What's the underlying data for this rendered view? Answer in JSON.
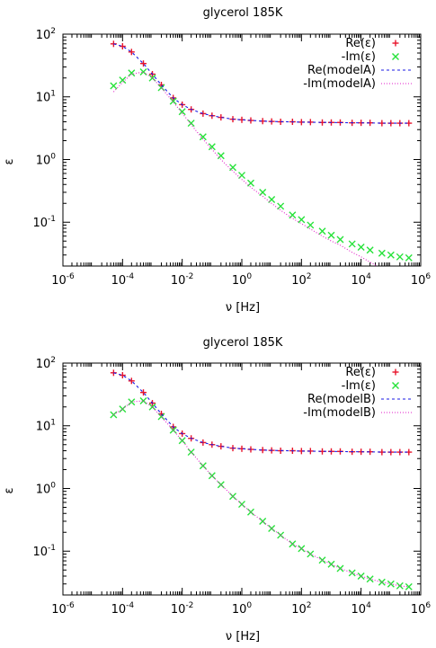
{
  "chart_data": [
    {
      "type": "scatter",
      "title": "glycerol 185K",
      "xlabel": "ν [Hz]",
      "ylabel": "ε",
      "xscale": "log",
      "yscale": "log",
      "xlim": [
        1e-06,
        1000000.0
      ],
      "ylim": [
        0.02,
        100
      ],
      "grid": false,
      "legend_position": "top-right",
      "x_ticks": [
        {
          "base": "10",
          "exp": "-6"
        },
        {
          "base": "10",
          "exp": "-4"
        },
        {
          "base": "10",
          "exp": "-2"
        },
        {
          "base": "10",
          "exp": "0"
        },
        {
          "base": "10",
          "exp": "2"
        },
        {
          "base": "10",
          "exp": "4"
        },
        {
          "base": "10",
          "exp": "6"
        }
      ],
      "y_ticks": [
        {
          "base": "10",
          "exp": "-1"
        },
        {
          "base": "10",
          "exp": "0"
        },
        {
          "base": "10",
          "exp": "1"
        },
        {
          "base": "10",
          "exp": "2"
        }
      ],
      "x": [
        5e-05,
        0.0001,
        0.0002,
        0.0005,
        0.001,
        0.002,
        0.005,
        0.01,
        0.02,
        0.05,
        0.1,
        0.2,
        0.5,
        1,
        2,
        5,
        10,
        20,
        50,
        100,
        200,
        500,
        1000,
        2000,
        5000,
        10000,
        20000,
        50000,
        100000,
        200000,
        400000
      ],
      "series": [
        {
          "name": "Re(ε)",
          "marker": "+",
          "color": "#e8132b",
          "y": [
            70,
            64,
            52,
            34,
            23,
            15.5,
            9.6,
            7.5,
            6.3,
            5.4,
            5.0,
            4.7,
            4.4,
            4.3,
            4.2,
            4.1,
            4.05,
            4.0,
            4.0,
            3.95,
            3.95,
            3.9,
            3.9,
            3.9,
            3.85,
            3.85,
            3.85,
            3.8,
            3.8,
            3.8,
            3.8
          ]
        },
        {
          "name": "-Im(ε)",
          "marker": "x",
          "color": "#27e23a",
          "y": [
            15,
            18.5,
            24,
            25,
            20,
            14,
            8.5,
            5.8,
            3.8,
            2.3,
            1.6,
            1.15,
            0.75,
            0.56,
            0.42,
            0.3,
            0.23,
            0.18,
            0.13,
            0.11,
            0.09,
            0.072,
            0.062,
            0.053,
            0.045,
            0.04,
            0.036,
            0.032,
            0.03,
            0.028,
            0.027
          ]
        },
        {
          "name": "Re(modelA)",
          "line": "dashed",
          "color": "#1a1ae6",
          "x": [
            5e-05,
            0.0001,
            0.0002,
            0.0005,
            0.001,
            0.002,
            0.005,
            0.01,
            0.02,
            0.05,
            0.1,
            0.2,
            0.5,
            1,
            5,
            10,
            100,
            1000,
            10000,
            100000,
            400000
          ],
          "y": [
            70,
            64,
            52,
            34,
            23,
            15.5,
            9.6,
            7.5,
            6.3,
            5.4,
            5.0,
            4.7,
            4.4,
            4.3,
            4.1,
            4.05,
            3.95,
            3.9,
            3.85,
            3.8,
            3.8
          ]
        },
        {
          "name": "-Im(modelA)",
          "line": "dotted",
          "color": "#e21ec8",
          "x": [
            5e-05,
            0.0001,
            0.0002,
            0.0005,
            0.001,
            0.002,
            0.005,
            0.01,
            0.02,
            0.05,
            0.1,
            0.2,
            0.5,
            1,
            2,
            5,
            10,
            20,
            50,
            100,
            200,
            500,
            1000,
            2000,
            5000,
            10000,
            20000,
            35000
          ],
          "y": [
            12,
            17,
            23,
            25,
            20,
            14,
            8.3,
            5.5,
            3.6,
            2.1,
            1.45,
            1.0,
            0.65,
            0.48,
            0.36,
            0.26,
            0.2,
            0.155,
            0.115,
            0.095,
            0.078,
            0.06,
            0.05,
            0.043,
            0.033,
            0.028,
            0.023,
            0.02
          ]
        }
      ]
    },
    {
      "type": "scatter",
      "title": "glycerol 185K",
      "xlabel": "ν [Hz]",
      "ylabel": "ε",
      "xscale": "log",
      "yscale": "log",
      "xlim": [
        1e-06,
        1000000.0
      ],
      "ylim": [
        0.02,
        100
      ],
      "grid": false,
      "legend_position": "top-right",
      "x_ticks": [
        {
          "base": "10",
          "exp": "-6"
        },
        {
          "base": "10",
          "exp": "-4"
        },
        {
          "base": "10",
          "exp": "-2"
        },
        {
          "base": "10",
          "exp": "0"
        },
        {
          "base": "10",
          "exp": "2"
        },
        {
          "base": "10",
          "exp": "4"
        },
        {
          "base": "10",
          "exp": "6"
        }
      ],
      "y_ticks": [
        {
          "base": "10",
          "exp": "-1"
        },
        {
          "base": "10",
          "exp": "0"
        },
        {
          "base": "10",
          "exp": "1"
        },
        {
          "base": "10",
          "exp": "2"
        }
      ],
      "x": [
        5e-05,
        0.0001,
        0.0002,
        0.0005,
        0.001,
        0.002,
        0.005,
        0.01,
        0.02,
        0.05,
        0.1,
        0.2,
        0.5,
        1,
        2,
        5,
        10,
        20,
        50,
        100,
        200,
        500,
        1000,
        2000,
        5000,
        10000,
        20000,
        50000,
        100000,
        200000,
        400000
      ],
      "series": [
        {
          "name": "Re(ε)",
          "marker": "+",
          "color": "#e8132b",
          "y": [
            70,
            64,
            52,
            34,
            23,
            15.5,
            9.6,
            7.5,
            6.3,
            5.4,
            5.0,
            4.7,
            4.4,
            4.3,
            4.2,
            4.1,
            4.05,
            4.0,
            4.0,
            3.95,
            3.95,
            3.9,
            3.9,
            3.9,
            3.85,
            3.85,
            3.85,
            3.8,
            3.8,
            3.8,
            3.8
          ]
        },
        {
          "name": "-Im(ε)",
          "marker": "x",
          "color": "#27e23a",
          "y": [
            15,
            18.5,
            24,
            25,
            20,
            14,
            8.5,
            5.8,
            3.8,
            2.3,
            1.6,
            1.15,
            0.75,
            0.56,
            0.42,
            0.3,
            0.23,
            0.18,
            0.13,
            0.11,
            0.09,
            0.072,
            0.062,
            0.053,
            0.045,
            0.04,
            0.036,
            0.032,
            0.03,
            0.028,
            0.027
          ]
        },
        {
          "name": "Re(modelB)",
          "line": "dashed",
          "color": "#1a1ae6",
          "x": [
            5e-05,
            0.0001,
            0.0002,
            0.0005,
            0.001,
            0.002,
            0.005,
            0.01,
            0.02,
            0.05,
            0.1,
            0.2,
            0.5,
            1,
            5,
            10,
            100,
            1000,
            10000,
            100000,
            400000
          ],
          "y": [
            70,
            64,
            52,
            34,
            23,
            15.5,
            9.6,
            7.5,
            6.3,
            5.4,
            5.0,
            4.7,
            4.4,
            4.3,
            4.1,
            4.05,
            3.95,
            3.9,
            3.85,
            3.8,
            3.8
          ]
        },
        {
          "name": "-Im(modelB)",
          "line": "dotted",
          "color": "#e21ec8",
          "x": [
            5e-05,
            0.0001,
            0.0002,
            0.0005,
            0.001,
            0.002,
            0.005,
            0.01,
            0.02,
            0.05,
            0.1,
            0.2,
            0.5,
            1,
            2,
            5,
            10,
            20,
            50,
            100,
            200,
            500,
            1000,
            2000,
            5000,
            10000,
            20000,
            50000,
            100000,
            200000,
            400000
          ],
          "y": [
            15,
            18.5,
            24,
            25,
            20,
            14,
            8.5,
            5.8,
            3.8,
            2.3,
            1.6,
            1.15,
            0.75,
            0.56,
            0.42,
            0.3,
            0.23,
            0.18,
            0.13,
            0.11,
            0.09,
            0.072,
            0.062,
            0.053,
            0.045,
            0.04,
            0.036,
            0.032,
            0.03,
            0.028,
            0.027
          ]
        }
      ]
    }
  ]
}
